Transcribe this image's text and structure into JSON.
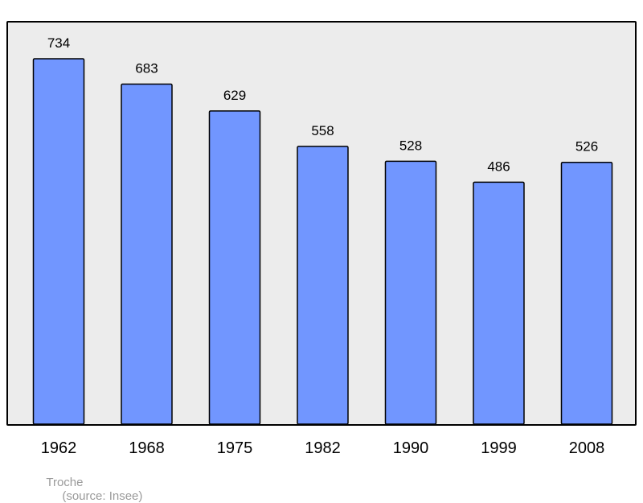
{
  "chart_data": {
    "type": "bar",
    "categories": [
      "1962",
      "1968",
      "1975",
      "1982",
      "1990",
      "1999",
      "2008"
    ],
    "values": [
      734,
      683,
      629,
      558,
      528,
      486,
      526
    ],
    "title": "",
    "xlabel": "",
    "ylabel": "",
    "ylim": [
      0,
      734
    ],
    "grid": false,
    "bar_color": "#7196ff",
    "bar_outline_color": "#000000",
    "plot_background": "#ececec"
  },
  "footer": {
    "author": "Troche",
    "source": "(source: Insee)"
  }
}
